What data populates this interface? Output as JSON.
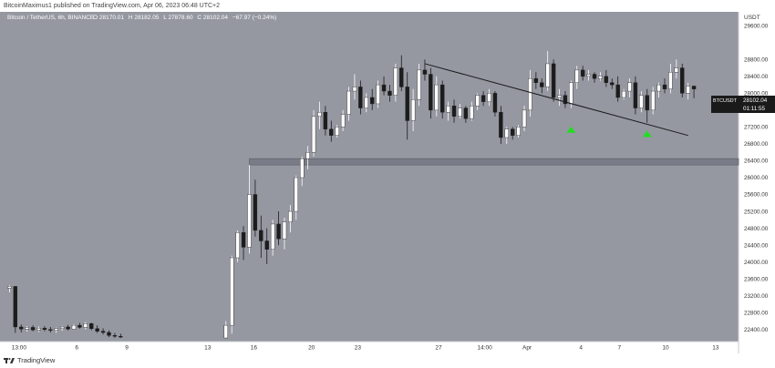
{
  "header": {
    "published_by": "BitcoinMaximus1 published on TradingView.com, Apr 06, 2023 06:48 UTC+2"
  },
  "legend": {
    "symbol": "Bitcoin / TetherUS, 6h, BINANCE",
    "open_label": "O",
    "open": "28170.01",
    "high_label": "H",
    "high": "28182.05",
    "low_label": "L",
    "low": "27878.60",
    "close_label": "C",
    "close": "28102.04",
    "change": "−67.97 (−0.24%)"
  },
  "price_axis": {
    "currency": "USDT",
    "ticks": [
      "29600.00",
      "28800.00",
      "28400.00",
      "28000.00",
      "27600.00",
      "27200.00",
      "26800.00",
      "26400.00",
      "26000.00",
      "25600.00",
      "25200.00",
      "24800.00",
      "24400.00",
      "24000.00",
      "23600.00",
      "23200.00",
      "22800.00",
      "22400.00"
    ]
  },
  "time_axis": {
    "ticks": [
      "13:00",
      "6",
      "9",
      "13",
      "16",
      "20",
      "23",
      "27",
      "14:00",
      "Apr",
      "4",
      "7",
      "10",
      "13"
    ]
  },
  "last_price": {
    "symbol": "BTCUSDT",
    "price": "28102.04",
    "countdown": "01:11:55"
  },
  "footer": {
    "brand": "TradingView"
  },
  "colors": {
    "background": "#9598a1",
    "up_candle": "#ffffff",
    "down_candle": "#1c1c1c",
    "support_zone": "#787b86",
    "arrows": "#22dd22",
    "trendline": "#1a1a1a"
  },
  "chart_data": {
    "type": "candlestick",
    "timeframe": "6h",
    "ylim": [
      22200,
      29800
    ],
    "support_zone": [
      26300,
      26450
    ],
    "descending_trendline": {
      "from": {
        "t": 71,
        "price": 28700
      },
      "to": {
        "t": 116,
        "price": 27000
      }
    },
    "bullish_arrows": [
      {
        "t": 96,
        "price": 27150
      },
      {
        "t": 109,
        "price": 27050
      }
    ],
    "candles": [
      {
        "t": 0,
        "o": 23380,
        "h": 23450,
        "l": 23280,
        "c": 23420
      },
      {
        "t": 1,
        "o": 23420,
        "h": 23430,
        "l": 22320,
        "c": 22460
      },
      {
        "t": 2,
        "o": 22460,
        "h": 22520,
        "l": 22330,
        "c": 22410
      },
      {
        "t": 3,
        "o": 22410,
        "h": 22480,
        "l": 22350,
        "c": 22450
      },
      {
        "t": 4,
        "o": 22450,
        "h": 22500,
        "l": 22360,
        "c": 22390
      },
      {
        "t": 5,
        "o": 22390,
        "h": 22470,
        "l": 22340,
        "c": 22430
      },
      {
        "t": 6,
        "o": 22430,
        "h": 22480,
        "l": 22360,
        "c": 22400
      },
      {
        "t": 7,
        "o": 22400,
        "h": 22460,
        "l": 22330,
        "c": 22380
      },
      {
        "t": 8,
        "o": 22380,
        "h": 22450,
        "l": 22320,
        "c": 22420
      },
      {
        "t": 9,
        "o": 22420,
        "h": 22490,
        "l": 22370,
        "c": 22460
      },
      {
        "t": 10,
        "o": 22460,
        "h": 22510,
        "l": 22380,
        "c": 22410
      },
      {
        "t": 11,
        "o": 22410,
        "h": 22530,
        "l": 22390,
        "c": 22500
      },
      {
        "t": 12,
        "o": 22500,
        "h": 22560,
        "l": 22420,
        "c": 22450
      },
      {
        "t": 13,
        "o": 22450,
        "h": 22580,
        "l": 22400,
        "c": 22540
      },
      {
        "t": 14,
        "o": 22540,
        "h": 22560,
        "l": 22380,
        "c": 22420
      },
      {
        "t": 15,
        "o": 22420,
        "h": 22500,
        "l": 22320,
        "c": 22360
      },
      {
        "t": 16,
        "o": 22360,
        "h": 22430,
        "l": 22280,
        "c": 22330
      },
      {
        "t": 17,
        "o": 22330,
        "h": 22380,
        "l": 22220,
        "c": 22260
      },
      {
        "t": 18,
        "o": 22260,
        "h": 22320,
        "l": 22200,
        "c": 22240
      },
      {
        "t": 19,
        "o": 22240,
        "h": 22300,
        "l": 22200,
        "c": 22220
      },
      {
        "t": 37,
        "o": 22200,
        "h": 22600,
        "l": 22200,
        "c": 22500
      },
      {
        "t": 38,
        "o": 22500,
        "h": 24150,
        "l": 22300,
        "c": 24100
      },
      {
        "t": 39,
        "o": 24100,
        "h": 24750,
        "l": 24000,
        "c": 24700
      },
      {
        "t": 40,
        "o": 24700,
        "h": 24850,
        "l": 24050,
        "c": 24350
      },
      {
        "t": 41,
        "o": 24350,
        "h": 26300,
        "l": 24200,
        "c": 25600
      },
      {
        "t": 42,
        "o": 25600,
        "h": 25950,
        "l": 24600,
        "c": 24750
      },
      {
        "t": 43,
        "o": 24750,
        "h": 25100,
        "l": 24100,
        "c": 24500
      },
      {
        "t": 44,
        "o": 24500,
        "h": 24800,
        "l": 23950,
        "c": 24300
      },
      {
        "t": 45,
        "o": 24300,
        "h": 25000,
        "l": 24150,
        "c": 24900
      },
      {
        "t": 46,
        "o": 24900,
        "h": 25200,
        "l": 24400,
        "c": 24550
      },
      {
        "t": 47,
        "o": 24550,
        "h": 25050,
        "l": 24300,
        "c": 24950
      },
      {
        "t": 48,
        "o": 24950,
        "h": 25350,
        "l": 24700,
        "c": 25200
      },
      {
        "t": 49,
        "o": 25200,
        "h": 26050,
        "l": 25000,
        "c": 26000
      },
      {
        "t": 50,
        "o": 26000,
        "h": 26500,
        "l": 25800,
        "c": 26450
      },
      {
        "t": 51,
        "o": 26450,
        "h": 26750,
        "l": 26200,
        "c": 26600
      },
      {
        "t": 52,
        "o": 26600,
        "h": 27600,
        "l": 26500,
        "c": 27450
      },
      {
        "t": 53,
        "o": 27450,
        "h": 27800,
        "l": 27150,
        "c": 27550
      },
      {
        "t": 54,
        "o": 27550,
        "h": 27700,
        "l": 27000,
        "c": 27150
      },
      {
        "t": 55,
        "o": 27150,
        "h": 27350,
        "l": 26850,
        "c": 27000
      },
      {
        "t": 56,
        "o": 27000,
        "h": 27250,
        "l": 26950,
        "c": 27200
      },
      {
        "t": 57,
        "o": 27200,
        "h": 27600,
        "l": 27100,
        "c": 27500
      },
      {
        "t": 58,
        "o": 27500,
        "h": 28150,
        "l": 27350,
        "c": 28050
      },
      {
        "t": 59,
        "o": 28050,
        "h": 28450,
        "l": 27850,
        "c": 28150
      },
      {
        "t": 60,
        "o": 28150,
        "h": 28300,
        "l": 27500,
        "c": 27650
      },
      {
        "t": 61,
        "o": 27650,
        "h": 28000,
        "l": 27550,
        "c": 27900
      },
      {
        "t": 62,
        "o": 27900,
        "h": 28100,
        "l": 27600,
        "c": 27750
      },
      {
        "t": 63,
        "o": 27750,
        "h": 28300,
        "l": 27650,
        "c": 28200
      },
      {
        "t": 64,
        "o": 28200,
        "h": 28400,
        "l": 27950,
        "c": 28050
      },
      {
        "t": 65,
        "o": 28050,
        "h": 28200,
        "l": 27800,
        "c": 27950
      },
      {
        "t": 66,
        "o": 27950,
        "h": 28700,
        "l": 27800,
        "c": 28600
      },
      {
        "t": 67,
        "o": 28600,
        "h": 28900,
        "l": 28050,
        "c": 28150
      },
      {
        "t": 68,
        "o": 28150,
        "h": 28500,
        "l": 26900,
        "c": 27350
      },
      {
        "t": 69,
        "o": 27350,
        "h": 28100,
        "l": 27100,
        "c": 27850
      },
      {
        "t": 70,
        "o": 27850,
        "h": 28700,
        "l": 27700,
        "c": 28550
      },
      {
        "t": 71,
        "o": 28550,
        "h": 28800,
        "l": 28300,
        "c": 28450
      },
      {
        "t": 72,
        "o": 28450,
        "h": 28600,
        "l": 27400,
        "c": 27600
      },
      {
        "t": 73,
        "o": 27600,
        "h": 28400,
        "l": 27450,
        "c": 28200
      },
      {
        "t": 74,
        "o": 28200,
        "h": 28300,
        "l": 27400,
        "c": 27550
      },
      {
        "t": 75,
        "o": 27550,
        "h": 27800,
        "l": 27350,
        "c": 27700
      },
      {
        "t": 76,
        "o": 27700,
        "h": 27850,
        "l": 27300,
        "c": 27450
      },
      {
        "t": 77,
        "o": 27450,
        "h": 27750,
        "l": 27400,
        "c": 27650
      },
      {
        "t": 78,
        "o": 27650,
        "h": 27700,
        "l": 27300,
        "c": 27400
      },
      {
        "t": 79,
        "o": 27400,
        "h": 27800,
        "l": 27350,
        "c": 27700
      },
      {
        "t": 80,
        "o": 27700,
        "h": 28000,
        "l": 27600,
        "c": 27950
      },
      {
        "t": 81,
        "o": 27950,
        "h": 28050,
        "l": 27700,
        "c": 27800
      },
      {
        "t": 82,
        "o": 27800,
        "h": 28100,
        "l": 27700,
        "c": 28000
      },
      {
        "t": 83,
        "o": 28000,
        "h": 28050,
        "l": 27450,
        "c": 27550
      },
      {
        "t": 84,
        "o": 27550,
        "h": 27700,
        "l": 26800,
        "c": 26950
      },
      {
        "t": 85,
        "o": 26950,
        "h": 27200,
        "l": 26800,
        "c": 27150
      },
      {
        "t": 86,
        "o": 27150,
        "h": 27200,
        "l": 26900,
        "c": 27000
      },
      {
        "t": 87,
        "o": 27000,
        "h": 27250,
        "l": 26950,
        "c": 27200
      },
      {
        "t": 88,
        "o": 27200,
        "h": 27700,
        "l": 27100,
        "c": 27600
      },
      {
        "t": 89,
        "o": 27600,
        "h": 28550,
        "l": 27450,
        "c": 28350
      },
      {
        "t": 90,
        "o": 28350,
        "h": 28500,
        "l": 28100,
        "c": 28250
      },
      {
        "t": 91,
        "o": 28250,
        "h": 28350,
        "l": 28000,
        "c": 28150
      },
      {
        "t": 92,
        "o": 28150,
        "h": 29000,
        "l": 28050,
        "c": 28700
      },
      {
        "t": 93,
        "o": 28700,
        "h": 28800,
        "l": 27800,
        "c": 27900
      },
      {
        "t": 94,
        "o": 27900,
        "h": 28100,
        "l": 27700,
        "c": 27950
      },
      {
        "t": 95,
        "o": 27950,
        "h": 28050,
        "l": 27650,
        "c": 27750
      },
      {
        "t": 96,
        "o": 27750,
        "h": 28300,
        "l": 27650,
        "c": 28250
      },
      {
        "t": 97,
        "o": 28250,
        "h": 28650,
        "l": 28100,
        "c": 28550
      },
      {
        "t": 98,
        "o": 28550,
        "h": 28650,
        "l": 28300,
        "c": 28400
      },
      {
        "t": 99,
        "o": 28400,
        "h": 28550,
        "l": 28300,
        "c": 28450
      },
      {
        "t": 100,
        "o": 28450,
        "h": 28500,
        "l": 28250,
        "c": 28350
      },
      {
        "t": 101,
        "o": 28350,
        "h": 28500,
        "l": 28300,
        "c": 28400
      },
      {
        "t": 102,
        "o": 28400,
        "h": 28550,
        "l": 28150,
        "c": 28250
      },
      {
        "t": 103,
        "o": 28250,
        "h": 28350,
        "l": 28100,
        "c": 28200
      },
      {
        "t": 104,
        "o": 28200,
        "h": 28400,
        "l": 27800,
        "c": 27900
      },
      {
        "t": 105,
        "o": 27900,
        "h": 28100,
        "l": 27850,
        "c": 28050
      },
      {
        "t": 106,
        "o": 28050,
        "h": 28350,
        "l": 27900,
        "c": 28250
      },
      {
        "t": 107,
        "o": 28250,
        "h": 28400,
        "l": 27500,
        "c": 27650
      },
      {
        "t": 108,
        "o": 27650,
        "h": 28050,
        "l": 27550,
        "c": 27950
      },
      {
        "t": 109,
        "o": 27950,
        "h": 28100,
        "l": 27300,
        "c": 27600
      },
      {
        "t": 110,
        "o": 27600,
        "h": 28150,
        "l": 27500,
        "c": 28050
      },
      {
        "t": 111,
        "o": 28050,
        "h": 28250,
        "l": 27900,
        "c": 28200
      },
      {
        "t": 112,
        "o": 28200,
        "h": 28350,
        "l": 28000,
        "c": 28100
      },
      {
        "t": 113,
        "o": 28100,
        "h": 28700,
        "l": 28000,
        "c": 28500
      },
      {
        "t": 114,
        "o": 28500,
        "h": 28800,
        "l": 28350,
        "c": 28600
      },
      {
        "t": 115,
        "o": 28600,
        "h": 28700,
        "l": 27900,
        "c": 28000
      },
      {
        "t": 116,
        "o": 28000,
        "h": 28250,
        "l": 27850,
        "c": 28170
      },
      {
        "t": 117,
        "o": 28170,
        "h": 28180,
        "l": 27880,
        "c": 28100
      }
    ]
  }
}
